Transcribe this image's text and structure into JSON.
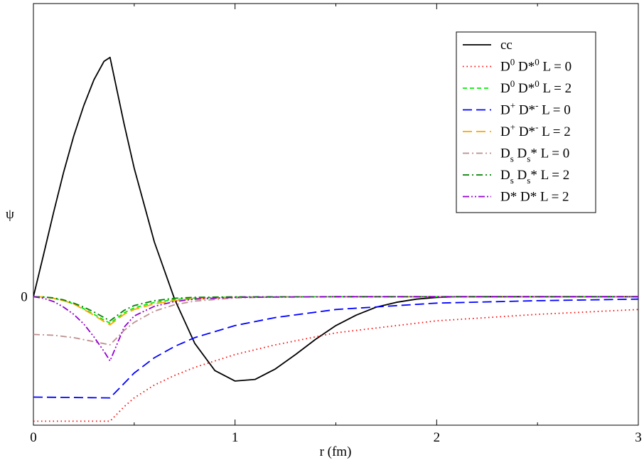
{
  "chart_data": {
    "type": "line",
    "title": "",
    "xlabel": "r (fm)",
    "ylabel": "ψ",
    "xlim": [
      0,
      3
    ],
    "ylim": [
      -1.6,
      3.65
    ],
    "x_ticks": [
      "0",
      "1",
      "2",
      "3"
    ],
    "y_ticks": [
      "0"
    ],
    "grid": false,
    "legend_position": "top-right",
    "series": [
      {
        "name": "cc",
        "color": "#000000",
        "dash": "solid",
        "legend": {
          "base": "cc"
        },
        "x": [
          0,
          0.05,
          0.1,
          0.15,
          0.2,
          0.25,
          0.3,
          0.35,
          0.38,
          0.45,
          0.5,
          0.6,
          0.7,
          0.8,
          0.9,
          1.0,
          1.1,
          1.2,
          1.3,
          1.4,
          1.5,
          1.6,
          1.7,
          1.8,
          1.9,
          2.0,
          2.1,
          2.2,
          2.5,
          3.0
        ],
        "y": [
          0,
          0.52,
          1.05,
          1.55,
          2.0,
          2.38,
          2.7,
          2.93,
          2.98,
          2.15,
          1.6,
          0.68,
          -0.03,
          -0.58,
          -0.92,
          -1.05,
          -1.03,
          -0.9,
          -0.72,
          -0.53,
          -0.36,
          -0.23,
          -0.13,
          -0.07,
          -0.03,
          -0.01,
          0,
          0,
          0,
          0
        ]
      },
      {
        "name": "D0 D*0 L = 0",
        "color": "#ff0000",
        "dash": "dotted",
        "legend": {
          "base": "D",
          "sup1": "0",
          "mid": " D*",
          "sup2": "0",
          "tail": " L = 0"
        },
        "x": [
          0,
          0.38,
          0.45,
          0.5,
          0.6,
          0.7,
          0.8,
          1.0,
          1.2,
          1.5,
          2.0,
          2.5,
          3.0
        ],
        "y": [
          -1.55,
          -1.55,
          -1.37,
          -1.26,
          -1.1,
          -0.98,
          -0.88,
          -0.72,
          -0.6,
          -0.45,
          -0.3,
          -0.22,
          -0.16
        ]
      },
      {
        "name": "D0 D*0 L = 2",
        "color": "#00ee00",
        "dash": "dashed",
        "legend": {
          "base": "D",
          "sup1": "0",
          "mid": " D*",
          "sup2": "0",
          "tail": " L = 2"
        },
        "x": [
          0,
          0.05,
          0.1,
          0.15,
          0.2,
          0.25,
          0.3,
          0.35,
          0.38,
          0.45,
          0.5,
          0.6,
          0.7,
          0.8,
          1.0,
          1.5,
          2.0,
          3.0
        ],
        "y": [
          0,
          -0.005,
          -0.02,
          -0.05,
          -0.09,
          -0.15,
          -0.22,
          -0.29,
          -0.33,
          -0.2,
          -0.14,
          -0.07,
          -0.035,
          -0.018,
          -0.005,
          0,
          0,
          0
        ]
      },
      {
        "name": "D+ D*- L = 0",
        "color": "#0000ff",
        "dash": "longdash",
        "legend": {
          "base": "D",
          "sup1": "+",
          "mid": " D*",
          "sup2": "-",
          "tail": " L = 0"
        },
        "x": [
          0,
          0.38,
          0.45,
          0.5,
          0.6,
          0.7,
          0.8,
          1.0,
          1.2,
          1.5,
          2.0,
          2.5,
          3.0
        ],
        "y": [
          -1.25,
          -1.26,
          -1.08,
          -0.95,
          -0.76,
          -0.62,
          -0.51,
          -0.36,
          -0.26,
          -0.16,
          -0.08,
          -0.05,
          -0.03
        ]
      },
      {
        "name": "D+ D*- L = 2",
        "color": "#ffa500",
        "dash": "longdash",
        "legend": {
          "base": "D",
          "sup1": "+",
          "mid": " D*",
          "sup2": "-",
          "tail": " L = 2"
        },
        "x": [
          0,
          0.05,
          0.1,
          0.15,
          0.2,
          0.25,
          0.3,
          0.35,
          0.38,
          0.45,
          0.5,
          0.6,
          0.7,
          0.8,
          1.0,
          1.5,
          2.0,
          3.0
        ],
        "y": [
          0,
          -0.005,
          -0.02,
          -0.05,
          -0.09,
          -0.16,
          -0.23,
          -0.31,
          -0.35,
          -0.22,
          -0.16,
          -0.09,
          -0.05,
          -0.025,
          -0.008,
          0,
          0,
          0
        ]
      },
      {
        "name": "Ds Ds* L = 0",
        "color": "#bc8f8f",
        "dash": "dashdot",
        "legend": {
          "base": "D",
          "sub1": "s",
          "mid": " D",
          "sub2": "s",
          "tail": "* L = 0"
        },
        "x": [
          0,
          0.1,
          0.2,
          0.3,
          0.38,
          0.45,
          0.5,
          0.6,
          0.7,
          0.8,
          1.0,
          1.2,
          1.5,
          2.0,
          3.0
        ],
        "y": [
          -0.47,
          -0.48,
          -0.51,
          -0.56,
          -0.6,
          -0.42,
          -0.32,
          -0.18,
          -0.1,
          -0.055,
          -0.015,
          -0.004,
          0,
          0,
          0
        ]
      },
      {
        "name": "Ds Ds* L = 2",
        "color": "#008000",
        "dash": "dashdot",
        "legend": {
          "base": "D",
          "sub1": "s",
          "mid": " D",
          "sub2": "s",
          "tail": "* L = 2"
        },
        "x": [
          0,
          0.05,
          0.1,
          0.15,
          0.2,
          0.25,
          0.3,
          0.35,
          0.38,
          0.45,
          0.5,
          0.6,
          0.7,
          0.8,
          1.0,
          1.5,
          2.0,
          3.0
        ],
        "y": [
          0,
          -0.004,
          -0.015,
          -0.04,
          -0.08,
          -0.13,
          -0.19,
          -0.26,
          -0.3,
          -0.17,
          -0.11,
          -0.05,
          -0.02,
          -0.008,
          -0.002,
          0,
          0,
          0
        ]
      },
      {
        "name": "D* D* L = 2",
        "color": "#9400d3",
        "dash": "dashdotdot",
        "legend": {
          "base": "D* D* L = 2"
        },
        "x": [
          0,
          0.05,
          0.1,
          0.15,
          0.2,
          0.25,
          0.3,
          0.35,
          0.38,
          0.45,
          0.5,
          0.6,
          0.7,
          0.8,
          1.0,
          1.5,
          2.0,
          3.0
        ],
        "y": [
          0,
          -0.02,
          -0.06,
          -0.13,
          -0.22,
          -0.34,
          -0.5,
          -0.68,
          -0.8,
          -0.38,
          -0.24,
          -0.12,
          -0.06,
          -0.03,
          -0.008,
          0,
          0,
          0
        ]
      }
    ]
  }
}
